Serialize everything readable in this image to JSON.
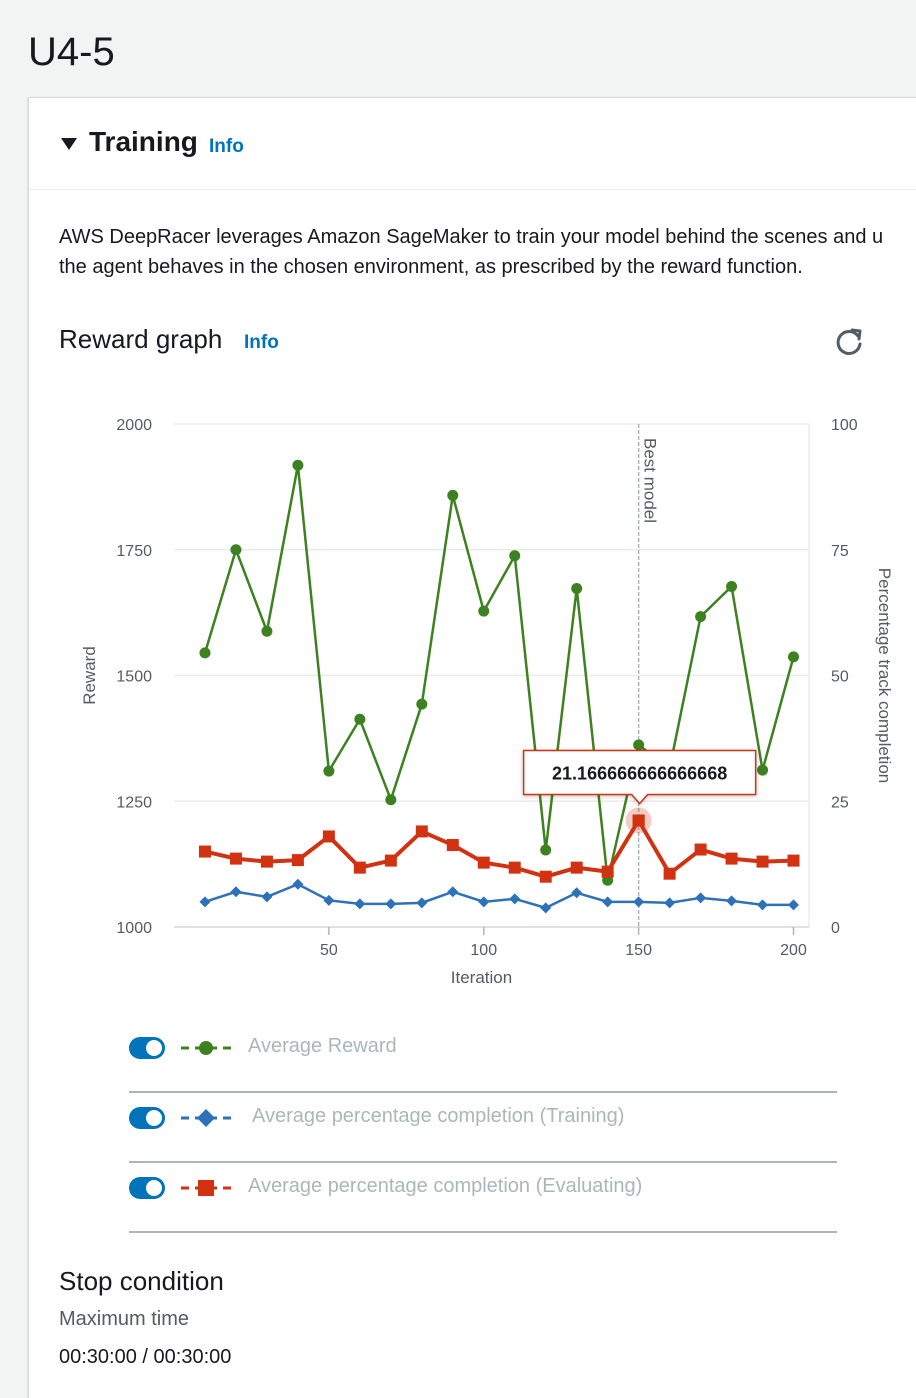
{
  "page": {
    "title": "U4-5"
  },
  "training": {
    "title": "Training",
    "info": "Info",
    "description_line1": "AWS DeepRacer leverages Amazon SageMaker to train your model behind the scenes and u",
    "description_line2": "the agent behaves in the chosen environment, as prescribed by the reward function."
  },
  "reward_graph": {
    "title": "Reward graph",
    "info": "Info",
    "refresh_icon": "refresh-icon"
  },
  "chart_data": {
    "type": "line",
    "x": [
      10,
      20,
      30,
      40,
      50,
      60,
      70,
      80,
      90,
      100,
      110,
      120,
      130,
      140,
      150,
      160,
      170,
      180,
      190,
      200
    ],
    "xlabel": "Iteration",
    "ylabel": "Reward",
    "y2label": "Percentage track completion",
    "xlim": [
      0,
      205
    ],
    "xticks": [
      50,
      100,
      150,
      200
    ],
    "ylim": [
      1000,
      2000
    ],
    "yticks": [
      1000,
      1250,
      1500,
      1750,
      2000
    ],
    "y2lim": [
      0,
      100
    ],
    "y2ticks": [
      0,
      25,
      50,
      75,
      100
    ],
    "grid": true,
    "best_model": {
      "x": 150,
      "label": "Best model"
    },
    "tooltip": {
      "x": 150,
      "y": 21.166666666666668,
      "text": "21.166666666666668"
    },
    "series": [
      {
        "name": "Average Reward",
        "axis": "left",
        "color": "#3d8121",
        "marker": "circle",
        "values": [
          1545,
          1750,
          1588,
          1918,
          1310,
          1413,
          1253,
          1443,
          1858,
          1628,
          1738,
          1153,
          1673,
          1093,
          1362,
          1315,
          1617,
          1677,
          1312,
          1537
        ]
      },
      {
        "name": "Average percentage completion (Training)",
        "axis": "right",
        "color": "#2d72b8",
        "marker": "diamond",
        "values": [
          5,
          7,
          6,
          8.5,
          5.3,
          4.6,
          4.6,
          4.8,
          7,
          5,
          5.6,
          3.8,
          6.8,
          5,
          5,
          4.8,
          5.8,
          5.2,
          4.4,
          4.4
        ]
      },
      {
        "name": "Average percentage completion (Evaluating)",
        "axis": "right",
        "color": "#d13212",
        "marker": "square",
        "values": [
          15,
          13.6,
          13,
          13.3,
          18,
          11.8,
          13.2,
          19,
          16.3,
          12.8,
          11.8,
          10,
          11.8,
          11,
          21.166666666666668,
          10.6,
          15.4,
          13.6,
          13,
          13.2
        ]
      }
    ]
  },
  "legend": [
    {
      "label": "Average Reward",
      "color": "#3d8121",
      "marker": "circle"
    },
    {
      "label": "Average percentage completion (Training)",
      "color": "#2d72b8",
      "marker": "diamond"
    },
    {
      "label": "Average percentage completion (Evaluating)",
      "color": "#d13212",
      "marker": "square"
    }
  ],
  "stop_condition": {
    "title": "Stop condition",
    "label": "Maximum time",
    "value": "00:30:00 / 00:30:00"
  }
}
